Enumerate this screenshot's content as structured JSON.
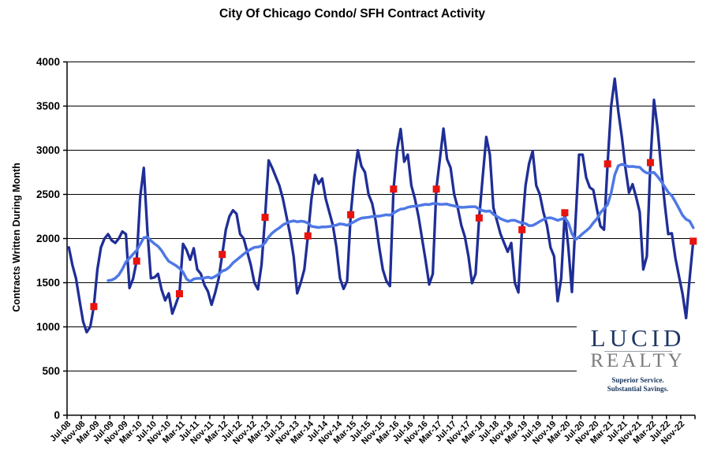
{
  "title": "City Of Chicago Condo/ SFH Contract Activity",
  "logo": {
    "line1": "LUCID",
    "line2": "REALTY",
    "tagline1": "Superior Service.",
    "tagline2": "Substantial Savings."
  },
  "chart_data": {
    "type": "line",
    "title": "City Of Chicago Condo/ SFH Contract Activity",
    "xlabel": "",
    "ylabel": "Contracts Written During Month",
    "ylim": [
      0,
      4000
    ],
    "ytick_interval": 500,
    "ytick_labels": [
      "0",
      "500",
      "1000",
      "1500",
      "2000",
      "2500",
      "3000",
      "3500",
      "4000"
    ],
    "grid": "horizontal",
    "legend": "none",
    "x_label_every": 4,
    "x_tick_labels": [
      "Jul-08",
      "Nov-08",
      "Mar-09",
      "Jul-09",
      "Nov-09",
      "Mar-10",
      "Jul-10",
      "Nov-10",
      "Mar-11",
      "Jul-11",
      "Nov-11",
      "Mar-12",
      "Jul-12",
      "Nov-12",
      "Mar-13",
      "Jul-13",
      "Nov-13",
      "Mar-14",
      "Jul-14",
      "Nov-14",
      "Mar-15",
      "Jul-15",
      "Nov-15",
      "Mar-16",
      "Jul-16",
      "Nov-16",
      "Mar-17",
      "Jul-17",
      "Nov-17",
      "Mar-18",
      "Jul-18",
      "Nov-18",
      "Mar-19",
      "Jul-19",
      "Nov-19",
      "Mar-20",
      "Jul-20",
      "Nov-20",
      "Mar-21",
      "Jul-21",
      "Nov-21",
      "Mar-22",
      "Jul-22",
      "Nov-22"
    ],
    "series": [
      {
        "name": "monthly-contracts",
        "color": "#1f2e96",
        "values": [
          1900,
          1700,
          1550,
          1300,
          1060,
          940,
          1000,
          1230,
          1650,
          1900,
          2000,
          2050,
          1980,
          1950,
          2000,
          2080,
          2050,
          1440,
          1545,
          1745,
          2470,
          2800,
          2100,
          1550,
          1560,
          1600,
          1420,
          1300,
          1380,
          1150,
          1260,
          1375,
          1940,
          1870,
          1760,
          1890,
          1650,
          1600,
          1475,
          1400,
          1250,
          1385,
          1550,
          1820,
          2100,
          2250,
          2320,
          2280,
          2050,
          2000,
          1850,
          1700,
          1500,
          1425,
          1700,
          2240,
          2885,
          2800,
          2700,
          2600,
          2450,
          2250,
          2050,
          1800,
          1380,
          1500,
          1650,
          2030,
          2450,
          2720,
          2620,
          2680,
          2450,
          2300,
          2150,
          1900,
          1550,
          1430,
          1520,
          2270,
          2700,
          3000,
          2820,
          2750,
          2500,
          2400,
          2200,
          1900,
          1650,
          1520,
          1462,
          2560,
          3000,
          3240,
          2870,
          2950,
          2600,
          2450,
          2250,
          2000,
          1750,
          1480,
          1600,
          2560,
          2900,
          3245,
          2900,
          2800,
          2500,
          2350,
          2150,
          2020,
          1800,
          1495,
          1600,
          2233,
          2700,
          3150,
          2950,
          2350,
          2200,
          2050,
          1950,
          1850,
          1950,
          1500,
          1390,
          2100,
          2600,
          2850,
          2990,
          2600,
          2500,
          2300,
          2150,
          1900,
          1800,
          1290,
          1550,
          2292,
          1900,
          1395,
          2185,
          2950,
          2950,
          2690,
          2580,
          2550,
          2335,
          2140,
          2100,
          2845,
          3500,
          3810,
          3440,
          3150,
          2800,
          2520,
          2615,
          2470,
          2300,
          1650,
          1800,
          2860,
          3570,
          3250,
          2800,
          2400,
          2050,
          2060,
          1780,
          1575,
          1375,
          1100,
          1550,
          1970
        ]
      },
      {
        "name": "12-month-moving-average",
        "color": "#4f78e6",
        "derived": "trailing-average",
        "window": 12
      }
    ],
    "markers": {
      "name": "same-month-each-year",
      "color": "#e9130d",
      "shape": "square",
      "indices": [
        7,
        19,
        31,
        43,
        55,
        67,
        79,
        91,
        103,
        115,
        127,
        139,
        151,
        163,
        175
      ]
    }
  }
}
